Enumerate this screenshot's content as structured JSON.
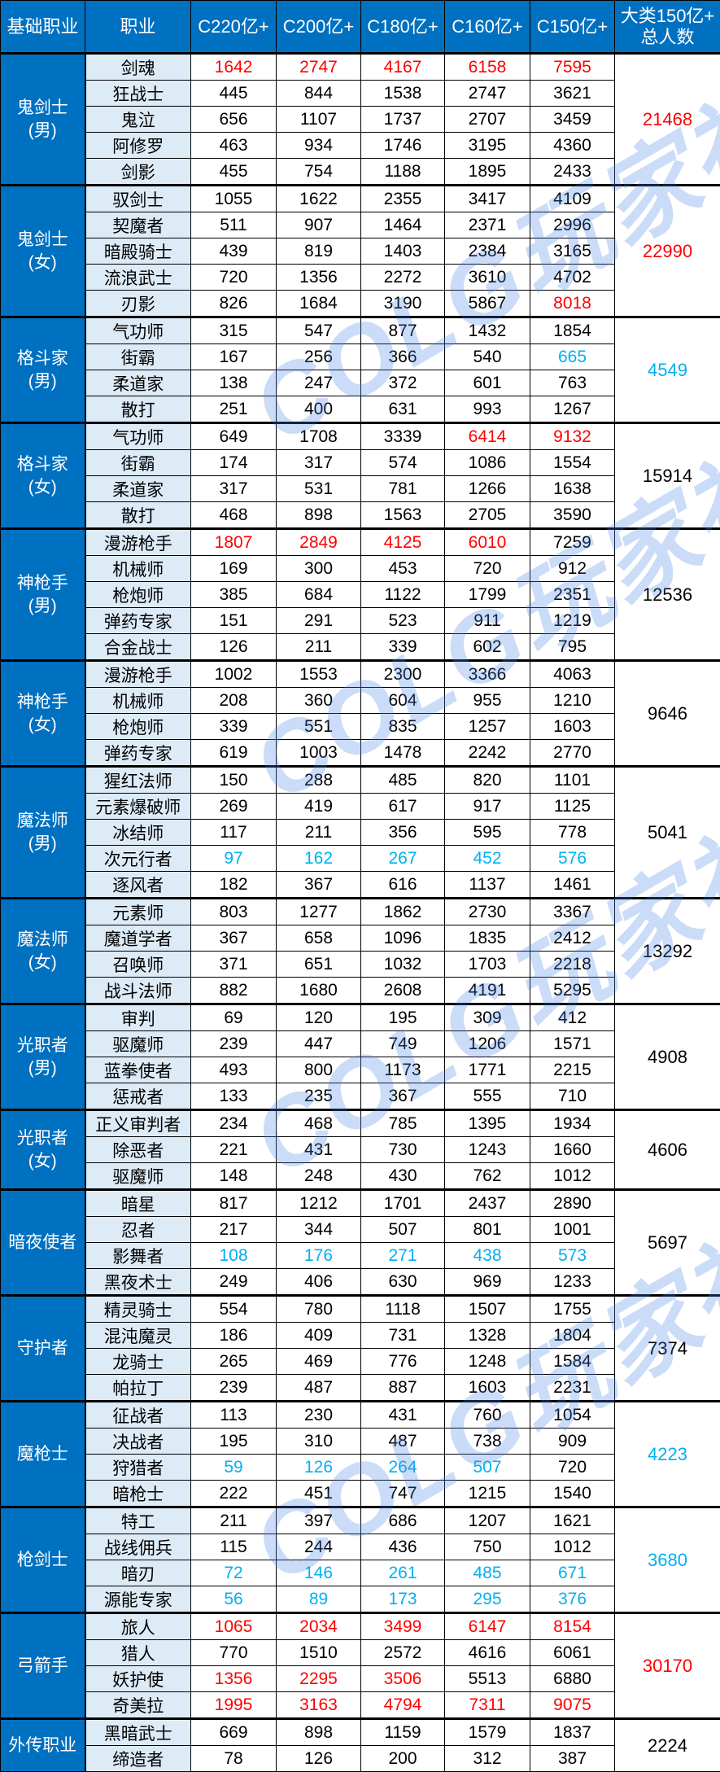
{
  "headers": [
    "基础职业",
    "职业",
    "C220亿+",
    "C200亿+",
    "C180亿+",
    "C160亿+",
    "C150亿+",
    "大类150亿+\n总人数"
  ],
  "colors": {
    "header_bg": "#0070c0",
    "job_bg": "#ddebf7",
    "highlight_red": "#ff0000",
    "highlight_blue": "#00b0f0"
  },
  "watermark": "COLG玩家社区",
  "groups": [
    {
      "name": "鬼剑士\n(男)",
      "total": "21468",
      "total_color": "red",
      "rows": [
        {
          "job": "剑魂",
          "v": [
            "1642",
            "2747",
            "4167",
            "6158",
            "7595"
          ],
          "c": [
            "red",
            "red",
            "red",
            "red",
            "red"
          ]
        },
        {
          "job": "狂战士",
          "v": [
            "445",
            "844",
            "1538",
            "2747",
            "3621"
          ]
        },
        {
          "job": "鬼泣",
          "v": [
            "656",
            "1107",
            "1737",
            "2707",
            "3459"
          ]
        },
        {
          "job": "阿修罗",
          "v": [
            "463",
            "934",
            "1746",
            "3195",
            "4360"
          ]
        },
        {
          "job": "剑影",
          "v": [
            "455",
            "754",
            "1188",
            "1895",
            "2433"
          ]
        }
      ]
    },
    {
      "name": "鬼剑士\n(女)",
      "total": "22990",
      "total_color": "red",
      "rows": [
        {
          "job": "驭剑士",
          "v": [
            "1055",
            "1622",
            "2355",
            "3417",
            "4109"
          ]
        },
        {
          "job": "契魔者",
          "v": [
            "511",
            "907",
            "1464",
            "2371",
            "2996"
          ]
        },
        {
          "job": "暗殿骑士",
          "v": [
            "439",
            "819",
            "1403",
            "2384",
            "3165"
          ]
        },
        {
          "job": "流浪武士",
          "v": [
            "720",
            "1356",
            "2272",
            "3610",
            "4702"
          ]
        },
        {
          "job": "刃影",
          "v": [
            "826",
            "1684",
            "3190",
            "5867",
            "8018"
          ],
          "c": [
            "",
            "",
            "",
            "",
            "red"
          ]
        }
      ]
    },
    {
      "name": "格斗家\n(男)",
      "total": "4549",
      "total_color": "blue",
      "rows": [
        {
          "job": "气功师",
          "v": [
            "315",
            "547",
            "877",
            "1432",
            "1854"
          ]
        },
        {
          "job": "街霸",
          "v": [
            "167",
            "256",
            "366",
            "540",
            "665"
          ],
          "c": [
            "",
            "",
            "",
            "",
            "blue"
          ]
        },
        {
          "job": "柔道家",
          "v": [
            "138",
            "247",
            "372",
            "601",
            "763"
          ]
        },
        {
          "job": "散打",
          "v": [
            "251",
            "400",
            "631",
            "993",
            "1267"
          ]
        }
      ]
    },
    {
      "name": "格斗家\n(女)",
      "total": "15914",
      "rows": [
        {
          "job": "气功师",
          "v": [
            "649",
            "1708",
            "3339",
            "6414",
            "9132"
          ],
          "c": [
            "",
            "",
            "",
            "red",
            "red"
          ]
        },
        {
          "job": "街霸",
          "v": [
            "174",
            "317",
            "574",
            "1086",
            "1554"
          ]
        },
        {
          "job": "柔道家",
          "v": [
            "317",
            "531",
            "781",
            "1266",
            "1638"
          ]
        },
        {
          "job": "散打",
          "v": [
            "468",
            "898",
            "1563",
            "2705",
            "3590"
          ]
        }
      ]
    },
    {
      "name": "神枪手\n(男)",
      "total": "12536",
      "rows": [
        {
          "job": "漫游枪手",
          "v": [
            "1807",
            "2849",
            "4125",
            "6010",
            "7259"
          ],
          "c": [
            "red",
            "red",
            "red",
            "red",
            ""
          ]
        },
        {
          "job": "机械师",
          "v": [
            "169",
            "300",
            "453",
            "720",
            "912"
          ]
        },
        {
          "job": "枪炮师",
          "v": [
            "385",
            "684",
            "1122",
            "1799",
            "2351"
          ]
        },
        {
          "job": "弹药专家",
          "v": [
            "151",
            "291",
            "523",
            "911",
            "1219"
          ]
        },
        {
          "job": "合金战士",
          "v": [
            "126",
            "211",
            "339",
            "602",
            "795"
          ]
        }
      ]
    },
    {
      "name": "神枪手\n(女)",
      "total": "9646",
      "rows": [
        {
          "job": "漫游枪手",
          "v": [
            "1002",
            "1553",
            "2300",
            "3366",
            "4063"
          ]
        },
        {
          "job": "机械师",
          "v": [
            "208",
            "360",
            "604",
            "955",
            "1210"
          ]
        },
        {
          "job": "枪炮师",
          "v": [
            "339",
            "551",
            "835",
            "1257",
            "1603"
          ]
        },
        {
          "job": "弹药专家",
          "v": [
            "619",
            "1003",
            "1478",
            "2242",
            "2770"
          ]
        }
      ]
    },
    {
      "name": "魔法师\n(男)",
      "total": "5041",
      "rows": [
        {
          "job": "猩红法师",
          "v": [
            "150",
            "288",
            "485",
            "820",
            "1101"
          ]
        },
        {
          "job": "元素爆破师",
          "v": [
            "269",
            "419",
            "617",
            "917",
            "1125"
          ]
        },
        {
          "job": "冰结师",
          "v": [
            "117",
            "211",
            "356",
            "595",
            "778"
          ]
        },
        {
          "job": "次元行者",
          "v": [
            "97",
            "162",
            "267",
            "452",
            "576"
          ],
          "c": [
            "blue",
            "blue",
            "blue",
            "blue",
            "blue"
          ]
        },
        {
          "job": "逐风者",
          "v": [
            "182",
            "367",
            "616",
            "1137",
            "1461"
          ]
        }
      ]
    },
    {
      "name": "魔法师\n(女)",
      "total": "13292",
      "rows": [
        {
          "job": "元素师",
          "v": [
            "803",
            "1277",
            "1862",
            "2730",
            "3367"
          ]
        },
        {
          "job": "魔道学者",
          "v": [
            "367",
            "658",
            "1096",
            "1835",
            "2412"
          ]
        },
        {
          "job": "召唤师",
          "v": [
            "371",
            "651",
            "1032",
            "1703",
            "2218"
          ]
        },
        {
          "job": "战斗法师",
          "v": [
            "882",
            "1680",
            "2608",
            "4191",
            "5295"
          ]
        }
      ]
    },
    {
      "name": "光职者\n(男)",
      "total": "4908",
      "rows": [
        {
          "job": "审判",
          "v": [
            "69",
            "120",
            "195",
            "309",
            "412"
          ]
        },
        {
          "job": "驱魔师",
          "v": [
            "239",
            "447",
            "749",
            "1206",
            "1571"
          ]
        },
        {
          "job": "蓝拳使者",
          "v": [
            "493",
            "800",
            "1173",
            "1771",
            "2215"
          ]
        },
        {
          "job": "惩戒者",
          "v": [
            "133",
            "235",
            "367",
            "555",
            "710"
          ]
        }
      ]
    },
    {
      "name": "光职者\n(女)",
      "total": "4606",
      "rows": [
        {
          "job": "正义审判者",
          "v": [
            "234",
            "468",
            "785",
            "1395",
            "1934"
          ]
        },
        {
          "job": "除恶者",
          "v": [
            "221",
            "431",
            "730",
            "1243",
            "1660"
          ]
        },
        {
          "job": "驱魔师",
          "v": [
            "148",
            "248",
            "430",
            "762",
            "1012"
          ]
        }
      ]
    },
    {
      "name": "暗夜使者",
      "total": "5697",
      "rows": [
        {
          "job": "暗星",
          "v": [
            "817",
            "1212",
            "1701",
            "2437",
            "2890"
          ]
        },
        {
          "job": "忍者",
          "v": [
            "217",
            "344",
            "507",
            "801",
            "1001"
          ]
        },
        {
          "job": "影舞者",
          "v": [
            "108",
            "176",
            "271",
            "438",
            "573"
          ],
          "c": [
            "blue",
            "blue",
            "blue",
            "blue",
            "blue"
          ]
        },
        {
          "job": "黑夜术士",
          "v": [
            "249",
            "406",
            "630",
            "969",
            "1233"
          ]
        }
      ]
    },
    {
      "name": "守护者",
      "total": "7374",
      "rows": [
        {
          "job": "精灵骑士",
          "v": [
            "554",
            "780",
            "1118",
            "1507",
            "1755"
          ]
        },
        {
          "job": "混沌魔灵",
          "v": [
            "186",
            "409",
            "731",
            "1328",
            "1804"
          ]
        },
        {
          "job": "龙骑士",
          "v": [
            "265",
            "469",
            "776",
            "1248",
            "1584"
          ]
        },
        {
          "job": "帕拉丁",
          "v": [
            "239",
            "487",
            "887",
            "1603",
            "2231"
          ]
        }
      ]
    },
    {
      "name": "魔枪士",
      "total": "4223",
      "total_color": "blue",
      "rows": [
        {
          "job": "征战者",
          "v": [
            "113",
            "230",
            "431",
            "760",
            "1054"
          ]
        },
        {
          "job": "决战者",
          "v": [
            "195",
            "310",
            "487",
            "738",
            "909"
          ]
        },
        {
          "job": "狩猎者",
          "v": [
            "59",
            "126",
            "264",
            "507",
            "720"
          ],
          "c": [
            "blue",
            "blue",
            "blue",
            "blue",
            ""
          ]
        },
        {
          "job": "暗枪士",
          "v": [
            "222",
            "451",
            "747",
            "1215",
            "1540"
          ]
        }
      ]
    },
    {
      "name": "枪剑士",
      "total": "3680",
      "total_color": "blue",
      "rows": [
        {
          "job": "特工",
          "v": [
            "211",
            "397",
            "686",
            "1207",
            "1621"
          ]
        },
        {
          "job": "战线佣兵",
          "v": [
            "115",
            "244",
            "436",
            "750",
            "1012"
          ]
        },
        {
          "job": "暗刃",
          "v": [
            "72",
            "146",
            "261",
            "485",
            "671"
          ],
          "c": [
            "blue",
            "blue",
            "blue",
            "blue",
            "blue"
          ]
        },
        {
          "job": "源能专家",
          "v": [
            "56",
            "89",
            "173",
            "295",
            "376"
          ],
          "c": [
            "blue",
            "blue",
            "blue",
            "blue",
            "blue"
          ]
        }
      ]
    },
    {
      "name": "弓箭手",
      "total": "30170",
      "total_color": "red",
      "rows": [
        {
          "job": "旅人",
          "v": [
            "1065",
            "2034",
            "3499",
            "6147",
            "8154"
          ],
          "c": [
            "red",
            "red",
            "red",
            "red",
            "red"
          ]
        },
        {
          "job": "猎人",
          "v": [
            "770",
            "1510",
            "2572",
            "4616",
            "6061"
          ]
        },
        {
          "job": "妖护使",
          "v": [
            "1356",
            "2295",
            "3506",
            "5513",
            "6880"
          ],
          "c": [
            "red",
            "red",
            "red",
            "",
            ""
          ]
        },
        {
          "job": "奇美拉",
          "v": [
            "1995",
            "3163",
            "4794",
            "7311",
            "9075"
          ],
          "c": [
            "red",
            "red",
            "red",
            "red",
            "red"
          ]
        }
      ]
    },
    {
      "name": "外传职业",
      "total": "2224",
      "rows": [
        {
          "job": "黑暗武士",
          "v": [
            "669",
            "898",
            "1159",
            "1579",
            "1837"
          ]
        },
        {
          "job": "缔造者",
          "v": [
            "78",
            "126",
            "200",
            "312",
            "387"
          ]
        }
      ]
    }
  ]
}
